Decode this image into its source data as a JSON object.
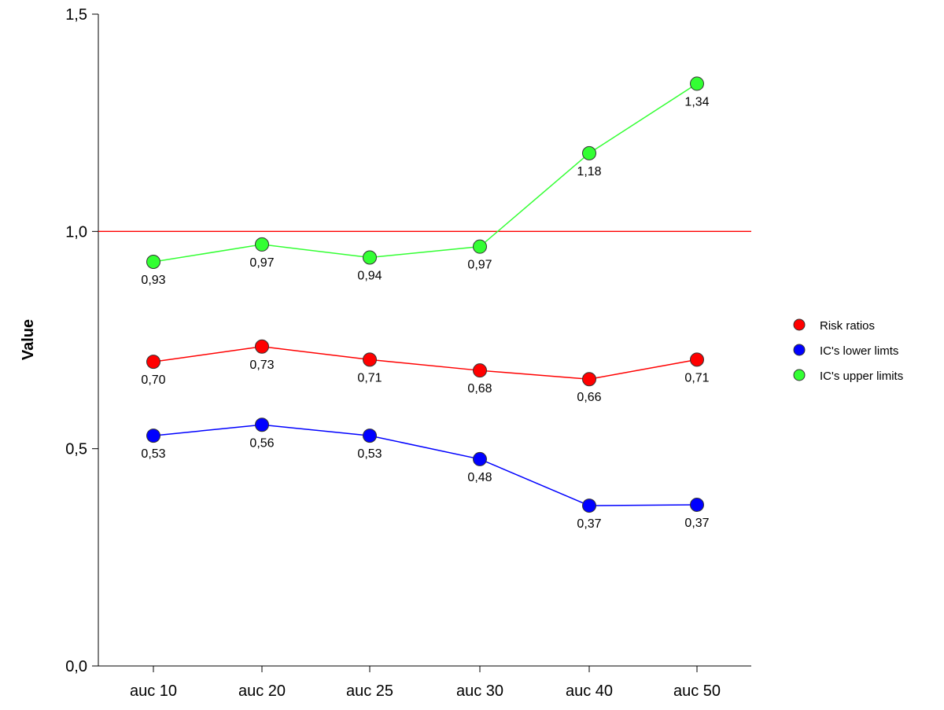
{
  "chart_data": {
    "type": "line",
    "title": "",
    "xlabel": "",
    "ylabel": "Value",
    "ylim": [
      0,
      1.5
    ],
    "y_ticks": [
      "0,0",
      "0,5",
      "1,0",
      "1,5"
    ],
    "y_tick_values": [
      0,
      0.5,
      1.0,
      1.5
    ],
    "categories": [
      "auc 10",
      "auc 20",
      "auc 25",
      "auc 30",
      "auc 40",
      "auc 50"
    ],
    "grid": false,
    "legend_position": "right",
    "reference_line": {
      "y": 1.0,
      "color": "#ff0000"
    },
    "series": [
      {
        "name": "Risk ratios",
        "color": "#ff0000",
        "line_color": "#ff0000",
        "values": [
          0.7,
          0.735,
          0.705,
          0.68,
          0.66,
          0.705
        ],
        "labels": [
          "0,70",
          "0,73",
          "0,71",
          "0,68",
          "0,66",
          "0,71"
        ]
      },
      {
        "name": "IC's lower limts",
        "color": "#0000ff",
        "line_color": "#0000ff",
        "values": [
          0.53,
          0.555,
          0.53,
          0.476,
          0.369,
          0.371
        ],
        "labels": [
          "0,53",
          "0,56",
          "0,53",
          "0,48",
          "0,37",
          "0,37"
        ]
      },
      {
        "name": "IC's upper limits",
        "color": "#33ff33",
        "line_color": "#33ff33",
        "values": [
          0.93,
          0.97,
          0.94,
          0.965,
          1.18,
          1.34
        ],
        "labels": [
          "0,93",
          "0,97",
          "0,94",
          "0,97",
          "1,18",
          "1,34"
        ]
      }
    ]
  }
}
